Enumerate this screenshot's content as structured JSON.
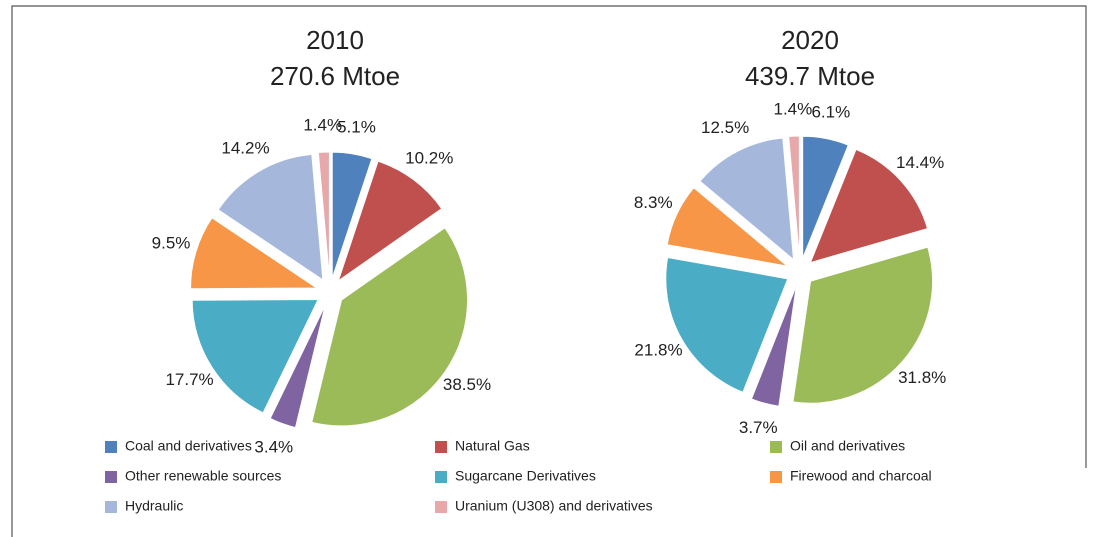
{
  "legend": {
    "categories": [
      "Coal and derivatives",
      "Natural Gas",
      "Oil and derivatives",
      "Other renewable sources",
      "Sugarcane Derivatives",
      "Firewood and charcoal",
      "Hydraulic",
      "Uranium (U308) and derivatives"
    ],
    "colors": [
      "#4f81bd",
      "#c0504d",
      "#9bbb59",
      "#8064a2",
      "#4bacc6",
      "#f79646",
      "#a5b8dc",
      "#e6a8a8"
    ]
  },
  "chart_data": [
    {
      "type": "pie",
      "title": "2010",
      "subtitle": "270.6 Mtoe",
      "values": [
        5.1,
        10.2,
        38.5,
        3.4,
        17.7,
        9.5,
        14.2,
        1.4
      ],
      "value_labels": [
        "5.1%",
        "10.2%",
        "38.5%",
        "3.4%",
        "17.7%",
        "9.5%",
        "14.2%",
        "1.4%"
      ]
    },
    {
      "type": "pie",
      "title": "2020",
      "subtitle": "439.7 Mtoe",
      "values": [
        6.1,
        14.4,
        31.8,
        3.7,
        21.8,
        8.3,
        12.5,
        1.4
      ],
      "value_labels": [
        "6.1%",
        "14.4%",
        "31.8%",
        "3.7%",
        "21.8%",
        "8.3%",
        "12.5%",
        "1.4%"
      ]
    }
  ]
}
